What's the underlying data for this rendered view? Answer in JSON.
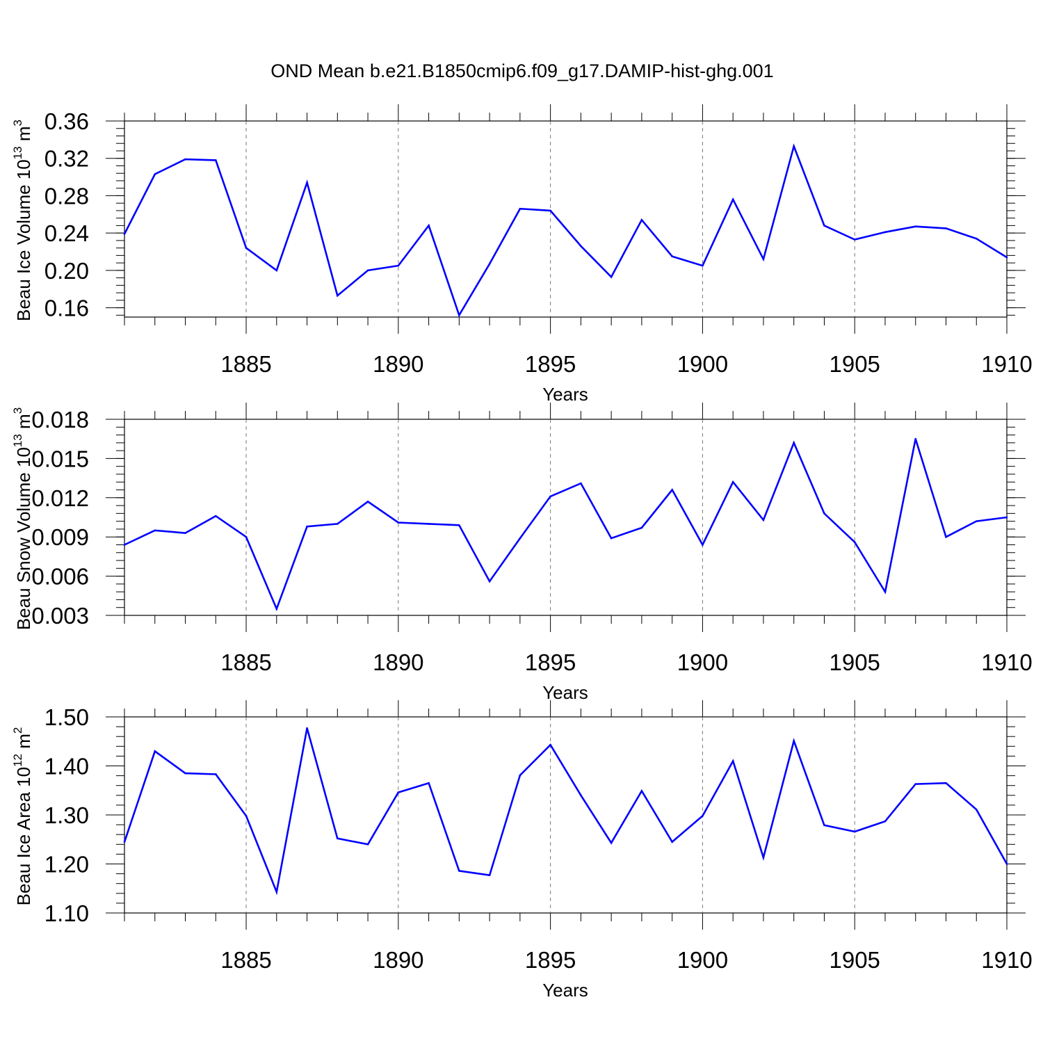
{
  "figure": {
    "title": "OND Mean b.e21.B1850cmip6.f09_g17.DAMIP-hist-ghg.001",
    "line_color": "#0000ff"
  },
  "chart_data": [
    {
      "type": "line",
      "xlabel": "Years",
      "ylabel": {
        "main": "Beau Ice Volume 10",
        "exp": "13",
        "unit": " m",
        "unit_exp": "3"
      },
      "xlim": [
        1881,
        1910
      ],
      "ylim": [
        0.15,
        0.36
      ],
      "xticks": [
        1885,
        1890,
        1895,
        1900,
        1905,
        1910
      ],
      "ytick_labels": [
        "0.16",
        "0.20",
        "0.24",
        "0.28",
        "0.32",
        "0.36"
      ],
      "grid": "vertical dashed at major x ticks",
      "series": [
        {
          "x": [
            1881,
            1882,
            1883,
            1884,
            1885,
            1886,
            1887,
            1888,
            1889,
            1890,
            1891,
            1892,
            1893,
            1894,
            1895,
            1896,
            1897,
            1898,
            1899,
            1900,
            1901,
            1902,
            1903,
            1904,
            1905,
            1906,
            1907,
            1908,
            1909,
            1910
          ],
          "values": [
            0.239,
            0.303,
            0.319,
            0.318,
            0.224,
            0.2,
            0.294,
            0.173,
            0.2,
            0.205,
            0.248,
            0.152,
            0.207,
            0.266,
            0.264,
            0.226,
            0.193,
            0.254,
            0.215,
            0.205,
            0.276,
            0.212,
            0.333,
            0.248,
            0.233,
            0.241,
            0.247,
            0.245,
            0.234,
            0.214
          ]
        }
      ]
    },
    {
      "type": "line",
      "xlabel": "Years",
      "ylabel": {
        "main": "Beau Snow Volume 10",
        "exp": "13",
        "unit": " m",
        "unit_exp": "3"
      },
      "xlim": [
        1881,
        1910
      ],
      "ylim": [
        0.003,
        0.018
      ],
      "xticks": [
        1885,
        1890,
        1895,
        1900,
        1905,
        1910
      ],
      "ytick_labels": [
        "0.003",
        "0.006",
        "0.009",
        "0.012",
        "0.015",
        "0.018"
      ],
      "grid": "vertical dashed at major x ticks",
      "series": [
        {
          "x": [
            1881,
            1882,
            1883,
            1884,
            1885,
            1886,
            1887,
            1888,
            1889,
            1890,
            1891,
            1892,
            1893,
            1894,
            1895,
            1896,
            1897,
            1898,
            1899,
            1900,
            1901,
            1902,
            1903,
            1904,
            1905,
            1906,
            1907,
            1908,
            1909,
            1910
          ],
          "values": [
            0.0084,
            0.0095,
            0.0093,
            0.0106,
            0.009,
            0.0035,
            0.0098,
            0.01,
            0.0117,
            0.0101,
            0.01,
            0.0099,
            0.0056,
            0.0089,
            0.0121,
            0.0131,
            0.0089,
            0.0097,
            0.0126,
            0.0084,
            0.0132,
            0.0103,
            0.0162,
            0.0108,
            0.0086,
            0.0048,
            0.0165,
            0.009,
            0.0102,
            0.0105
          ]
        }
      ]
    },
    {
      "type": "line",
      "xlabel": "Years",
      "ylabel": {
        "main": "Beau Ice Area 10",
        "exp": "12",
        "unit": " m",
        "unit_exp": "2"
      },
      "xlim": [
        1881,
        1910
      ],
      "ylim": [
        1.1,
        1.5
      ],
      "xticks": [
        1885,
        1890,
        1895,
        1900,
        1905,
        1910
      ],
      "ytick_labels": [
        "1.10",
        "1.20",
        "1.30",
        "1.40",
        "1.50"
      ],
      "grid": "vertical dashed at major x ticks",
      "series": [
        {
          "x": [
            1881,
            1882,
            1883,
            1884,
            1885,
            1886,
            1887,
            1888,
            1889,
            1890,
            1891,
            1892,
            1893,
            1894,
            1895,
            1896,
            1897,
            1898,
            1899,
            1900,
            1901,
            1902,
            1903,
            1904,
            1905,
            1906,
            1907,
            1908,
            1909,
            1910
          ],
          "values": [
            1.245,
            1.43,
            1.385,
            1.383,
            1.298,
            1.143,
            1.477,
            1.252,
            1.24,
            1.346,
            1.365,
            1.186,
            1.177,
            1.381,
            1.443,
            1.34,
            1.243,
            1.349,
            1.245,
            1.298,
            1.41,
            1.213,
            1.451,
            1.279,
            1.266,
            1.287,
            1.363,
            1.365,
            1.311,
            1.2
          ]
        }
      ]
    }
  ]
}
